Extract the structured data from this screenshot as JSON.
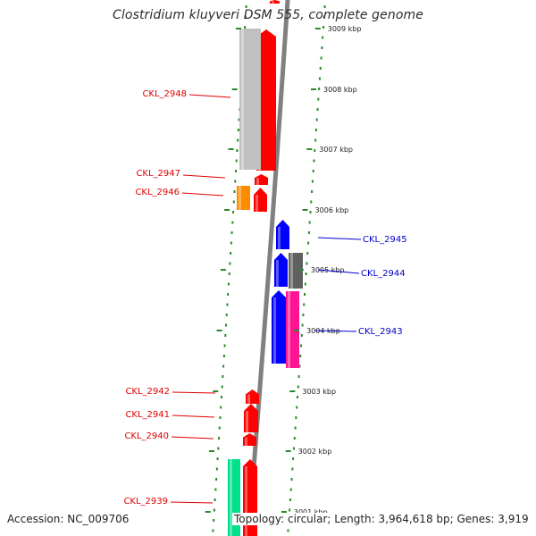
{
  "title": "Clostridium kluyveri DSM 555, complete genome",
  "accession_text": "Accession: NC_009706",
  "topology_text": "Topology: circular; Length: 3,964,618 bp; Genes: 3,919",
  "colors": {
    "backbone": "#808080",
    "dots": "#2a8a2a",
    "label_left": "#e00000",
    "label_right": "#0000cc"
  },
  "scale": {
    "unit": "kbp",
    "ticks": [
      {
        "kbp": 3009,
        "label": "3009 kbp"
      },
      {
        "kbp": 3008,
        "label": "3008 kbp"
      },
      {
        "kbp": 3007,
        "label": "3007 kbp"
      },
      {
        "kbp": 3006,
        "label": "3006 kbp"
      },
      {
        "kbp": 3005,
        "label": "3005 kbp"
      },
      {
        "kbp": 3004,
        "label": "3004 kbp"
      },
      {
        "kbp": 3003,
        "label": "3003 kbp"
      },
      {
        "kbp": 3002,
        "label": "3002 kbp"
      },
      {
        "kbp": 3001,
        "label": "3001 kbp"
      }
    ]
  },
  "labels": [
    {
      "text": "CKL_2948",
      "side": "left"
    },
    {
      "text": "CKL_2947",
      "side": "left"
    },
    {
      "text": "CKL_2946",
      "side": "left"
    },
    {
      "text": "CKL_2945",
      "side": "right"
    },
    {
      "text": "CKL_2944",
      "side": "right"
    },
    {
      "text": "CKL_2943",
      "side": "right"
    },
    {
      "text": "CKL_2942",
      "side": "left"
    },
    {
      "text": "CKL_2941",
      "side": "left"
    },
    {
      "text": "CKL_2940",
      "side": "left"
    },
    {
      "text": "CKL_2939",
      "side": "left"
    }
  ],
  "genes": [
    {
      "strand": "forward",
      "color": "#ff0000"
    },
    {
      "strand": "forward",
      "color": "#ff0000"
    },
    {
      "strand": "reverse",
      "color": "#c0c0c0"
    },
    {
      "strand": "forward",
      "color": "#ff0000"
    },
    {
      "strand": "forward",
      "color": "#ff0000"
    },
    {
      "strand": "reverse",
      "color": "#ff8c00"
    },
    {
      "strand": "forward",
      "color": "#0000ff"
    },
    {
      "strand": "forward",
      "color": "#0000ff"
    },
    {
      "strand": "reverse",
      "color": "#606060"
    },
    {
      "strand": "forward",
      "color": "#0000ff"
    },
    {
      "strand": "reverse",
      "color": "#ff1493"
    },
    {
      "strand": "forward",
      "color": "#ff0000"
    },
    {
      "strand": "forward",
      "color": "#ff0000"
    },
    {
      "strand": "forward",
      "color": "#ff0000"
    },
    {
      "strand": "forward",
      "color": "#ff0000"
    },
    {
      "strand": "reverse",
      "color": "#00e08a"
    }
  ]
}
